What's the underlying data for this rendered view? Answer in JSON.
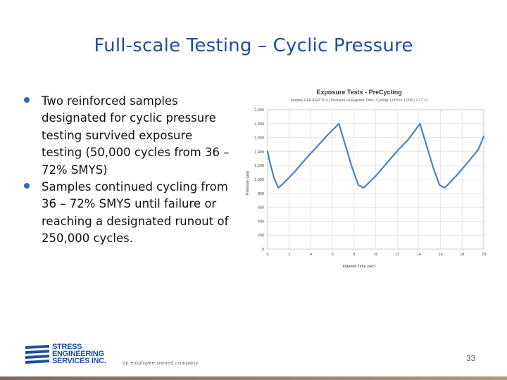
{
  "slide": {
    "title": "Full-scale Testing – Cyclic Pressure",
    "bullets": [
      "Two reinforced samples designated for cyclic pressure testing survived exposure testing (50,000 cycles from 36 – 72% SMYS)",
      "Samples continued cycling from 36 – 72% SMYS until failure or reaching a designated runout of 250,000 cycles."
    ],
    "page_number": "33"
  },
  "footer": {
    "logo_lines": [
      "STRESS",
      "ENGINEERING",
      "SERVICES INC."
    ],
    "tagline": "an employee-owned company",
    "rule_color": "#8e7c66"
  },
  "colors": {
    "title": "#1f4e9c",
    "bullet": "#2a6bbf",
    "series": "#4f81bd"
  },
  "chart_data": {
    "type": "line",
    "title": "Exposure Tests - PreCycling",
    "subtitle": "Sample OFF A E8 31 4 | Pressure vs Elapsed Time | Cycling 1,005 to 1,008 | 2 27 17",
    "xlabel": "Elapsed Time (sec)",
    "ylabel": "Pressure (psi)",
    "xlim": [
      0,
      20
    ],
    "ylim": [
      0,
      2000
    ],
    "xticks": [
      "0",
      "2",
      "4",
      "6",
      "8",
      "10",
      "12",
      "14",
      "16",
      "18",
      "20"
    ],
    "yticks": [
      "0",
      "200",
      "400",
      "600",
      "800",
      "1,000",
      "1,200",
      "1,400",
      "1,600",
      "1,800",
      "2,000"
    ],
    "grid": true,
    "series": [
      {
        "x": [
          0.0,
          0.2,
          0.6,
          1.0,
          1.5,
          2.5,
          3.5,
          4.5,
          5.5,
          6.6,
          7.8,
          8.4,
          8.9,
          10.0,
          11.0,
          12.0,
          13.0,
          14.1,
          15.3,
          15.9,
          16.4,
          17.5,
          18.5,
          19.5,
          20.0
        ],
        "y": [
          1400,
          1250,
          1020,
          880,
          950,
          1110,
          1290,
          1460,
          1630,
          1800,
          1180,
          920,
          880,
          1050,
          1230,
          1410,
          1570,
          1800,
          1180,
          920,
          880,
          1060,
          1240,
          1430,
          1620
        ]
      }
    ]
  }
}
